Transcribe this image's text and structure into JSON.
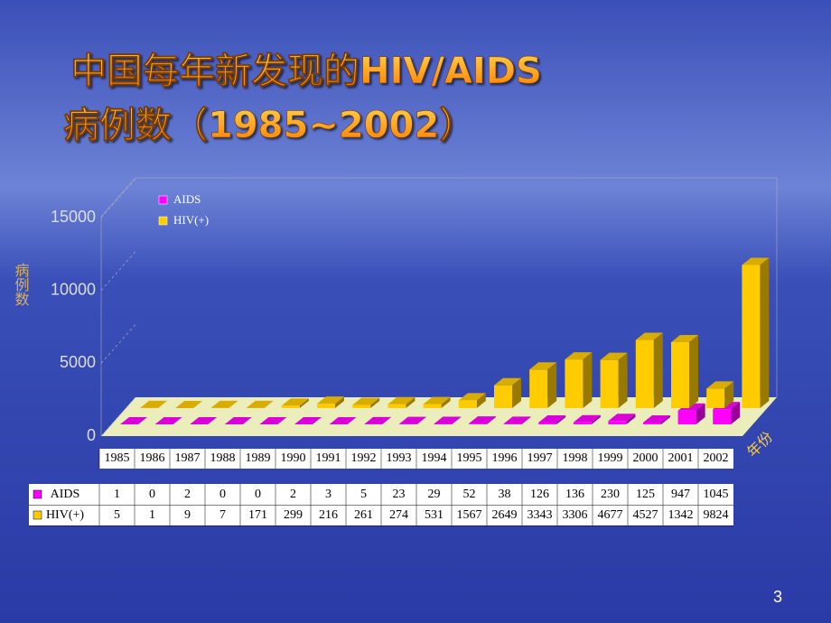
{
  "title": "中国每年新发现的HIV/AIDS",
  "subtitle": "病例数（1985~2002）",
  "page_number": "3",
  "chart_data": {
    "type": "bar3d",
    "y_label": "病例数",
    "x_label": "年份",
    "categories": [
      "1985",
      "1986",
      "1987",
      "1988",
      "1989",
      "1990",
      "1991",
      "1992",
      "1993",
      "1994",
      "1995",
      "1996",
      "1997",
      "1998",
      "1999",
      "2000",
      "2001",
      "2002"
    ],
    "series": [
      {
        "name": "AIDS",
        "color": "#ff00ff",
        "values": [
          1,
          0,
          2,
          0,
          0,
          2,
          3,
          5,
          23,
          29,
          52,
          38,
          126,
          136,
          230,
          125,
          947,
          1045
        ]
      },
      {
        "name": "HIV(+)",
        "color": "#ffcc00",
        "values": [
          5,
          1,
          9,
          7,
          171,
          299,
          216,
          261,
          274,
          531,
          1567,
          2649,
          3343,
          3306,
          4677,
          4527,
          1342,
          9824
        ]
      }
    ],
    "ylim": [
      0,
      15000
    ],
    "yticks": [
      0,
      5000,
      10000,
      15000
    ]
  }
}
